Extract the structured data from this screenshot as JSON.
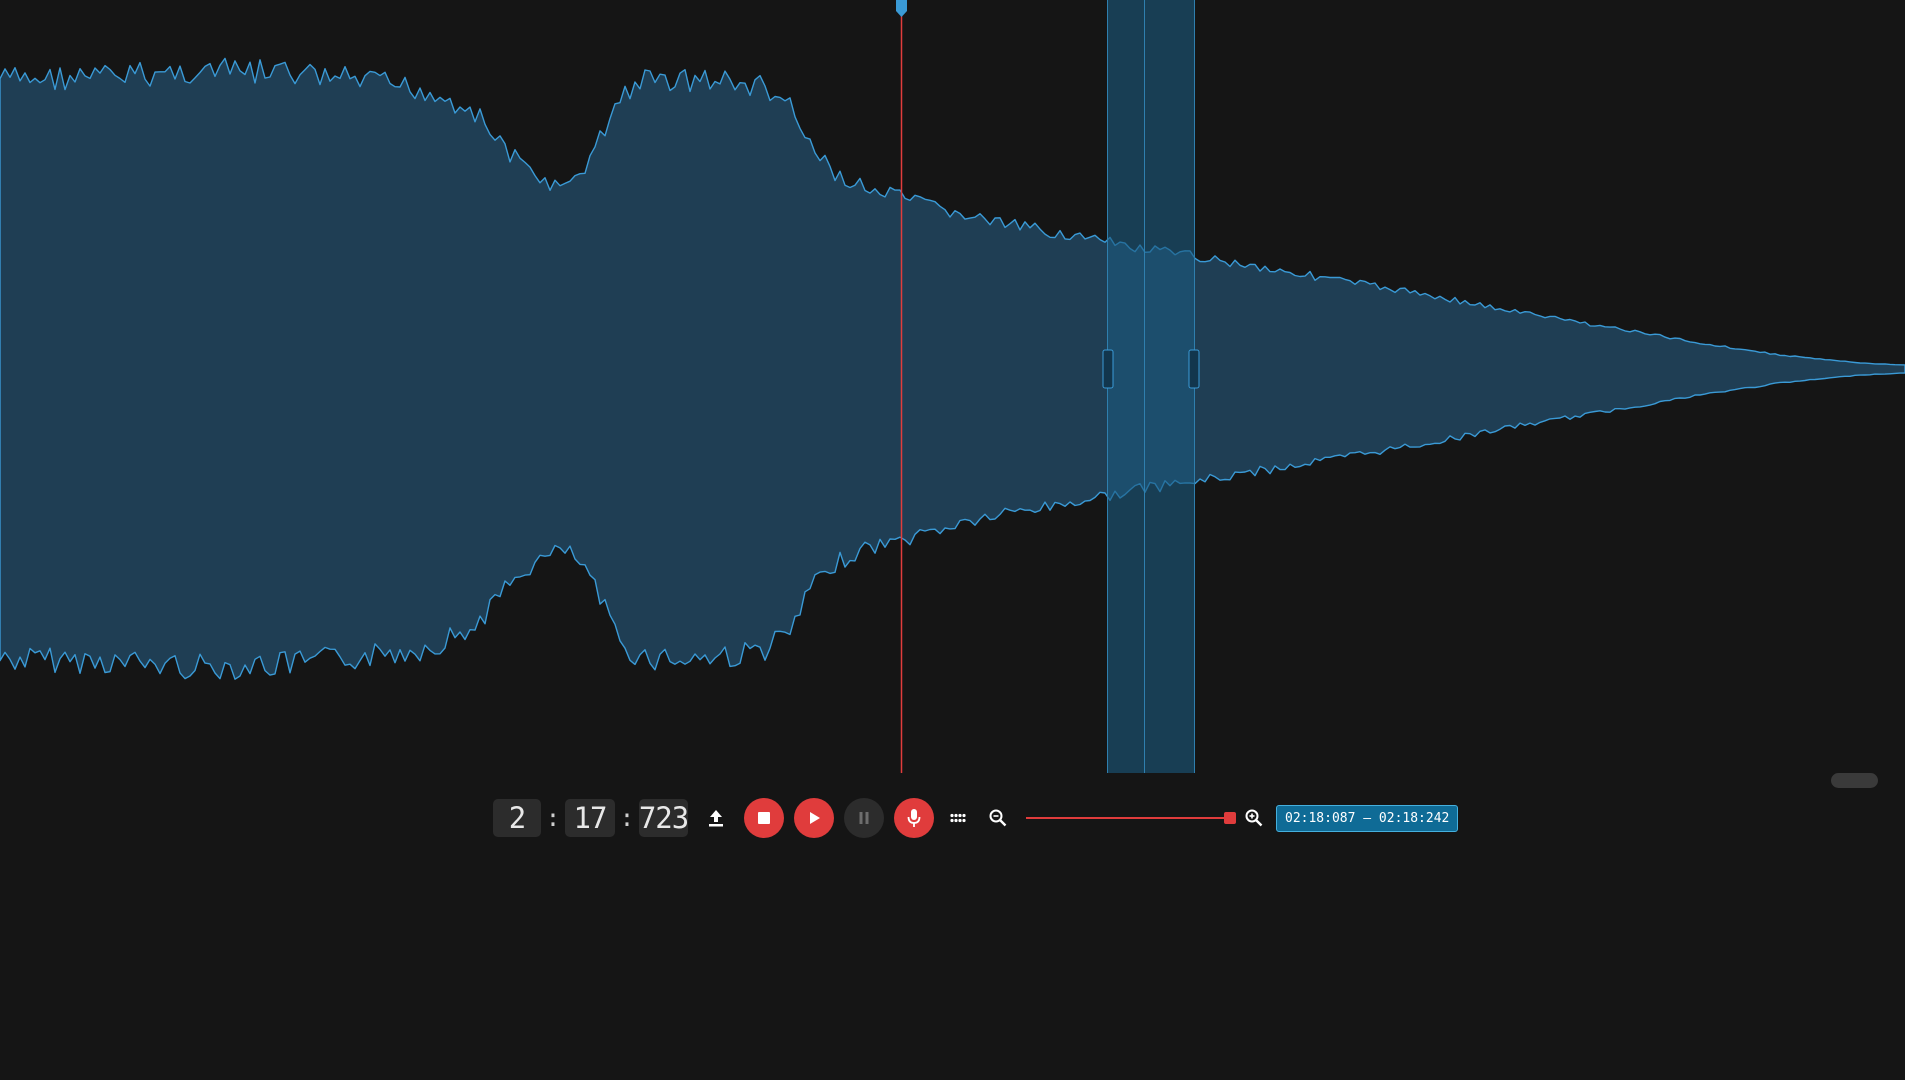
{
  "colors": {
    "background": "#151515",
    "waveform_fill": "#1f3e54",
    "waveform_line": "#3a9ad6",
    "playhead": "#e03c3c",
    "region_fill": "#1b5a7e",
    "accent_red": "#e03c3c",
    "badge_bg": "#0f6b96"
  },
  "transport": {
    "minutes": "2",
    "seconds": "17",
    "milliseconds": "723",
    "separator": ":"
  },
  "icons": {
    "upload": "upload-icon",
    "stop": "stop-icon",
    "play": "play-icon",
    "pause": "pause-icon",
    "record": "microphone-icon",
    "more": "dots-grid-icon",
    "zoom_out": "zoom-out-icon",
    "zoom_in": "zoom-in-icon"
  },
  "zoom": {
    "level": 1.0
  },
  "selection": {
    "range_label": "02:18:087 – 02:18:242"
  }
}
